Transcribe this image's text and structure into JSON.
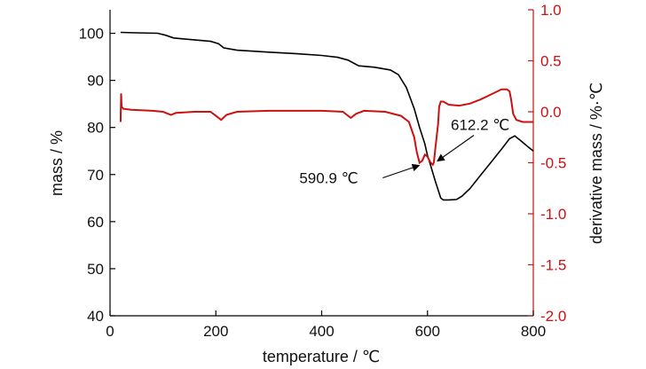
{
  "chart_data": {
    "type": "line",
    "xlabel": "temperature / ℃",
    "ylabel_left": "mass / %",
    "ylabel_right": "derivative mass / %·℃",
    "xlim": [
      0,
      800
    ],
    "ylim_left": [
      40,
      105
    ],
    "ylim_right": [
      -2.0,
      1.0
    ],
    "xticks": [
      0,
      200,
      400,
      600,
      800
    ],
    "yticks_left": [
      40,
      50,
      60,
      70,
      80,
      90,
      100
    ],
    "yticks_right": [
      "1.0",
      "0.5",
      "0.0",
      "-0.5",
      "-1.0",
      "-1.5",
      "-2.0"
    ],
    "yticks_right_values": [
      1.0,
      0.5,
      0.0,
      -0.5,
      -1.0,
      -1.5,
      -2.0
    ],
    "grid": false,
    "colors": {
      "mass": "#000000",
      "derivative": "#cc1111",
      "axis_right": "#cc1111"
    },
    "series": [
      {
        "axis": "left",
        "x": [
          20,
          50,
          90,
          105,
          120,
          140,
          190,
          205,
          215,
          240,
          300,
          350,
          400,
          430,
          450,
          470,
          500,
          530,
          545,
          560,
          575,
          585,
          595,
          600,
          605,
          615,
          625,
          630,
          640,
          655,
          665,
          680,
          700,
          720,
          740,
          755,
          765,
          775,
          790,
          800
        ],
        "y": [
          100.2,
          100.1,
          100.0,
          99.6,
          99.0,
          98.8,
          98.3,
          97.8,
          96.9,
          96.4,
          96.0,
          95.7,
          95.3,
          94.9,
          94.3,
          93.1,
          92.8,
          92.2,
          91.2,
          88.5,
          84.0,
          80.0,
          76.5,
          74.0,
          72.3,
          68.5,
          65.0,
          64.6,
          64.6,
          64.7,
          65.4,
          67.0,
          69.8,
          72.6,
          75.4,
          77.6,
          78.2,
          77.3,
          75.9,
          75.0
        ]
      },
      {
        "axis": "right",
        "x": [
          20,
          21,
          22,
          25,
          40,
          80,
          100,
          115,
          125,
          160,
          190,
          200,
          210,
          220,
          240,
          300,
          400,
          440,
          455,
          465,
          480,
          520,
          550,
          565,
          575,
          580,
          585,
          590,
          595,
          600,
          605,
          610,
          612,
          615,
          620,
          622,
          625,
          630,
          640,
          660,
          680,
          700,
          720,
          740,
          750,
          755,
          758,
          762,
          768,
          780,
          800
        ],
        "y": [
          -0.1,
          0.18,
          0.05,
          0.03,
          0.02,
          0.01,
          0.0,
          -0.03,
          -0.01,
          0.0,
          0.0,
          -0.04,
          -0.08,
          -0.03,
          0.0,
          0.01,
          0.01,
          0.0,
          -0.06,
          -0.02,
          0.01,
          0.0,
          -0.04,
          -0.1,
          -0.25,
          -0.4,
          -0.5,
          -0.48,
          -0.42,
          -0.44,
          -0.49,
          -0.52,
          -0.5,
          -0.35,
          -0.12,
          0.05,
          0.1,
          0.1,
          0.07,
          0.06,
          0.08,
          0.12,
          0.17,
          0.22,
          0.22,
          0.2,
          0.12,
          -0.02,
          -0.08,
          -0.1,
          -0.1
        ]
      }
    ],
    "annotations": [
      {
        "text": "590.9 ℃",
        "x": 590.9,
        "y_right": -0.5
      },
      {
        "text": "612.2 ℃",
        "x": 612.2,
        "y_right": -0.5
      }
    ]
  }
}
